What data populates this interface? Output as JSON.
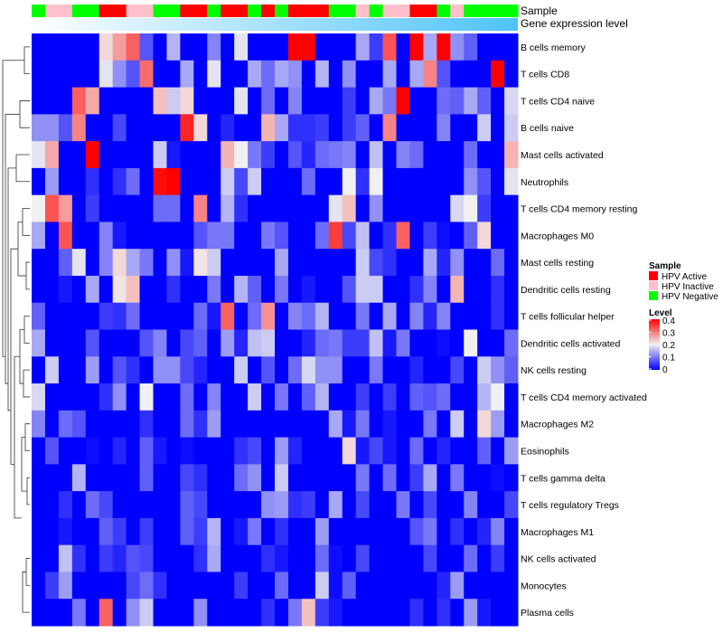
{
  "chart_data": {
    "type": "heatmap",
    "annotation_labels": {
      "sample": "Sample",
      "gene_expression": "Gene expression level"
    },
    "sample_groups": [
      "G",
      "P",
      "P",
      "G",
      "G",
      "R",
      "R",
      "P",
      "P",
      "G",
      "G",
      "R",
      "R",
      "G",
      "R",
      "R",
      "G",
      "R",
      "G",
      "R",
      "R",
      "R",
      "G",
      "G",
      "P",
      "G",
      "P",
      "P",
      "R",
      "R",
      "G",
      "P",
      "G",
      "G",
      "G",
      "G"
    ],
    "sample_colors": {
      "R": "#FF0000",
      "P": "#FFC0CB",
      "G": "#00FF00"
    },
    "gene_expression_gradient": [
      "#FFFFFF",
      "#4FC3F7"
    ],
    "rows": [
      "B cells memory",
      "T cells CD8",
      "T cells CD4 naive",
      "B cells naive",
      "Mast cells activated",
      "Neutrophils",
      "T cells CD4 memory resting",
      "Macrophages M0",
      "Mast cells resting",
      "Dendritic cells resting",
      "T cells follicular helper",
      "Dendritic cells activated",
      "NK cells resting",
      "T cells CD4 memory activated",
      "Macrophages M2",
      "Eosinophils",
      "T cells gamma delta",
      "T cells regulatory  Tregs",
      "Macrophages M1",
      "NK cells activated",
      "Monocytes",
      "Plasma cells"
    ],
    "values": [
      [
        0,
        0,
        0,
        0,
        0,
        0.22,
        0.27,
        0.32,
        0.07,
        0,
        0.15,
        0,
        0,
        0.11,
        0,
        0.19,
        0,
        0,
        0,
        0.4,
        0.4,
        0,
        0,
        0,
        0.14,
        0.05,
        0.33,
        0,
        0.4,
        0.14,
        0.4,
        0.12,
        0.08,
        0,
        0,
        0
      ],
      [
        0,
        0,
        0,
        0,
        0,
        0.19,
        0.12,
        0.07,
        0.31,
        0,
        0,
        0.14,
        0,
        0.19,
        0,
        0,
        0.14,
        0.09,
        0.14,
        0.12,
        0,
        0.15,
        0,
        0.12,
        0,
        0,
        0.14,
        0,
        0.14,
        0.29,
        0.07,
        0,
        0,
        0,
        0.4,
        0
      ],
      [
        0,
        0,
        0,
        0.32,
        0.26,
        0,
        0,
        0,
        0,
        0.24,
        0.17,
        0.22,
        0,
        0,
        0,
        0.19,
        0,
        0.09,
        0,
        0.11,
        0,
        0,
        0,
        0.05,
        0,
        0.14,
        0.1,
        0.4,
        0,
        0,
        0.09,
        0.08,
        0.14,
        0.08,
        0,
        0.18
      ],
      [
        0.12,
        0.12,
        0.07,
        0.29,
        0,
        0,
        0.06,
        0,
        0,
        0,
        0,
        0.37,
        0.22,
        0,
        0.03,
        0,
        0,
        0.25,
        0.14,
        0.04,
        0.04,
        0.05,
        0,
        0.05,
        0.08,
        0,
        0.29,
        0,
        0,
        0,
        0.11,
        0,
        0,
        0.17,
        0,
        0.17
      ],
      [
        0.19,
        0.26,
        0,
        0,
        0.4,
        0,
        0,
        0,
        0,
        0.17,
        0.02,
        0,
        0,
        0,
        0.25,
        0.2,
        0.1,
        0.05,
        0,
        0.07,
        0.03,
        0.09,
        0.1,
        0.11,
        0,
        0.16,
        0,
        0.11,
        0.09,
        0,
        0,
        0,
        0.09,
        0,
        0,
        0.25
      ],
      [
        0,
        0.13,
        0,
        0,
        0.04,
        0,
        0.04,
        0.09,
        0,
        0.39,
        0.4,
        0,
        0,
        0,
        0.17,
        0.06,
        0.17,
        0,
        0,
        0,
        0.09,
        0,
        0,
        0.2,
        0.04,
        0.2,
        0,
        0,
        0,
        0,
        0,
        0,
        0.12,
        0.07,
        0,
        0.19
      ],
      [
        0.2,
        0.33,
        0.27,
        0,
        0.05,
        0,
        0,
        0,
        0,
        0.09,
        0.09,
        0,
        0.29,
        0,
        0.15,
        0.04,
        0,
        0,
        0,
        0,
        0,
        0,
        0.19,
        0.24,
        0,
        0.12,
        0,
        0,
        0,
        0,
        0,
        0.18,
        0.2,
        0.05,
        0,
        0
      ],
      [
        0.14,
        0,
        0.33,
        0,
        0,
        0.11,
        0.02,
        0,
        0,
        0,
        0,
        0,
        0.07,
        0.1,
        0.1,
        0,
        0,
        0.1,
        0.07,
        0,
        0,
        0.09,
        0.35,
        0.06,
        0.16,
        0,
        0.04,
        0.32,
        0,
        0.05,
        0.01,
        0,
        0.08,
        0.22,
        0,
        0
      ],
      [
        0,
        0,
        0.08,
        0.19,
        0,
        0.11,
        0.22,
        0.14,
        0.1,
        0,
        0.12,
        0.02,
        0.21,
        0.17,
        0,
        0,
        0,
        0,
        0.14,
        0,
        0,
        0,
        0,
        0,
        0.17,
        0.06,
        0.04,
        0,
        0,
        0.14,
        0.03,
        0.12,
        0,
        0,
        0.09,
        0
      ],
      [
        0,
        0,
        0.02,
        0,
        0.14,
        0,
        0.21,
        0.24,
        0,
        0,
        0.04,
        0,
        0,
        0.1,
        0,
        0.15,
        0.08,
        0,
        0.1,
        0,
        0.02,
        0,
        0,
        0.07,
        0.17,
        0.17,
        0,
        0,
        0.04,
        0.11,
        0,
        0.25,
        0,
        0,
        0.04,
        0
      ],
      [
        0.08,
        0,
        0,
        0,
        0,
        0.05,
        0.04,
        0.09,
        0,
        0,
        0,
        0,
        0.09,
        0.02,
        0.32,
        0,
        0.09,
        0.28,
        0,
        0.11,
        0.09,
        0.15,
        0,
        0,
        0.1,
        0,
        0.14,
        0,
        0.11,
        0.03,
        0.11,
        0,
        0,
        0,
        0.04,
        0
      ],
      [
        0.14,
        0,
        0,
        0,
        0.07,
        0,
        0,
        0,
        0.07,
        0.11,
        0,
        0.06,
        0.08,
        0,
        0.13,
        0.03,
        0.16,
        0.17,
        0,
        0,
        0.03,
        0.09,
        0.1,
        0.05,
        0.05,
        0.16,
        0.02,
        0.1,
        0,
        0,
        0.01,
        0,
        0.2,
        0,
        0,
        0.09
      ],
      [
        0,
        0.17,
        0,
        0,
        0.13,
        0,
        0.07,
        0.04,
        0,
        0.12,
        0.12,
        0.06,
        0.03,
        0,
        0,
        0.17,
        0,
        0.07,
        0,
        0.09,
        0.18,
        0.12,
        0.12,
        0,
        0,
        0.1,
        0,
        0,
        0.03,
        0,
        0,
        0.06,
        0,
        0.17,
        0.12,
        0.08
      ],
      [
        0.18,
        0,
        0,
        0,
        0,
        0.04,
        0.12,
        0,
        0.2,
        0,
        0,
        0.09,
        0,
        0.11,
        0,
        0,
        0.17,
        0,
        0.1,
        0,
        0.08,
        0.15,
        0,
        0,
        0.05,
        0,
        0.05,
        0,
        0.08,
        0.07,
        0.09,
        0,
        0,
        0.15,
        0.2,
        0
      ],
      [
        0.11,
        0,
        0.09,
        0.07,
        0,
        0,
        0,
        0,
        0.04,
        0,
        0,
        0.09,
        0.04,
        0.13,
        0,
        0,
        0,
        0,
        0,
        0,
        0,
        0,
        0.14,
        0.02,
        0.1,
        0,
        0.02,
        0,
        0,
        0.1,
        0,
        0.17,
        0,
        0.22,
        0.13,
        0
      ],
      [
        0,
        0.07,
        0,
        0,
        0.01,
        0,
        0.03,
        0,
        0.08,
        0.02,
        0,
        0.01,
        0,
        0,
        0,
        0.04,
        0.06,
        0,
        0.13,
        0.03,
        0,
        0,
        0,
        0.22,
        0.02,
        0.06,
        0.02,
        0,
        0.09,
        0,
        0.03,
        0,
        0,
        0.08,
        0,
        0.13
      ],
      [
        0,
        0,
        0,
        0.15,
        0,
        0,
        0,
        0,
        0.08,
        0,
        0,
        0.06,
        0.04,
        0,
        0,
        0.09,
        0.12,
        0,
        0.17,
        0,
        0,
        0,
        0,
        0,
        0.1,
        0,
        0.09,
        0,
        0.05,
        0.14,
        0,
        0.1,
        0,
        0,
        0.01,
        0
      ],
      [
        0,
        0,
        0.04,
        0,
        0.09,
        0.06,
        0,
        0,
        0,
        0,
        0,
        0.08,
        0.06,
        0,
        0,
        0,
        0,
        0.12,
        0.13,
        0.04,
        0.05,
        0,
        0.14,
        0,
        0.06,
        0,
        0,
        0.1,
        0,
        0.06,
        0,
        0,
        0.11,
        0,
        0,
        0.06
      ],
      [
        0,
        0,
        0.02,
        0,
        0,
        0.08,
        0.05,
        0,
        0.05,
        0,
        0,
        0.08,
        0.05,
        0.15,
        0,
        0.02,
        0.1,
        0,
        0.04,
        0,
        0,
        0.13,
        0,
        0,
        0,
        0,
        0,
        0,
        0.07,
        0.1,
        0,
        0.04,
        0,
        0.03,
        0.11,
        0
      ],
      [
        0,
        0,
        0.16,
        0.04,
        0,
        0.05,
        0.03,
        0.07,
        0.06,
        0,
        0,
        0,
        0.04,
        0.14,
        0,
        0,
        0,
        0.04,
        0.02,
        0,
        0,
        0.09,
        0.01,
        0,
        0.06,
        0,
        0,
        0,
        0,
        0.06,
        0,
        0,
        0.09,
        0,
        0.05,
        0
      ],
      [
        0,
        0.05,
        0.13,
        0,
        0,
        0,
        0,
        0.06,
        0.09,
        0.04,
        0,
        0,
        0,
        0,
        0,
        0.05,
        0,
        0,
        0.09,
        0,
        0,
        0.17,
        0.01,
        0.08,
        0,
        0,
        0,
        0,
        0,
        0,
        0.03,
        0.13,
        0,
        0,
        0,
        0
      ],
      [
        0,
        0,
        0,
        0.1,
        0,
        0.32,
        0,
        0.12,
        0.17,
        0,
        0,
        0,
        0.12,
        0,
        0,
        0,
        0,
        0.04,
        0,
        0.1,
        0.24,
        0.05,
        0.02,
        0,
        0,
        0,
        0,
        0,
        0.04,
        0,
        0.04,
        0,
        0.13,
        0.02,
        0,
        0
      ]
    ],
    "color_scale": {
      "min": 0,
      "mid": 0.2,
      "max": 0.4,
      "low": "#0000FF",
      "midColor": "#F0F0F0",
      "high": "#FF0000"
    },
    "legend": {
      "sample_title": "Sample",
      "sample_items": [
        {
          "label": "HPV Active",
          "color": "#FF0000"
        },
        {
          "label": "HPV Inactive",
          "color": "#FFC0CB"
        },
        {
          "label": "HPV Negative",
          "color": "#00FF00"
        }
      ],
      "level_title": "Level",
      "level_ticks": [
        "0.4",
        "0.3",
        "0.2",
        "0.1",
        "0"
      ],
      "placement": "right"
    }
  }
}
